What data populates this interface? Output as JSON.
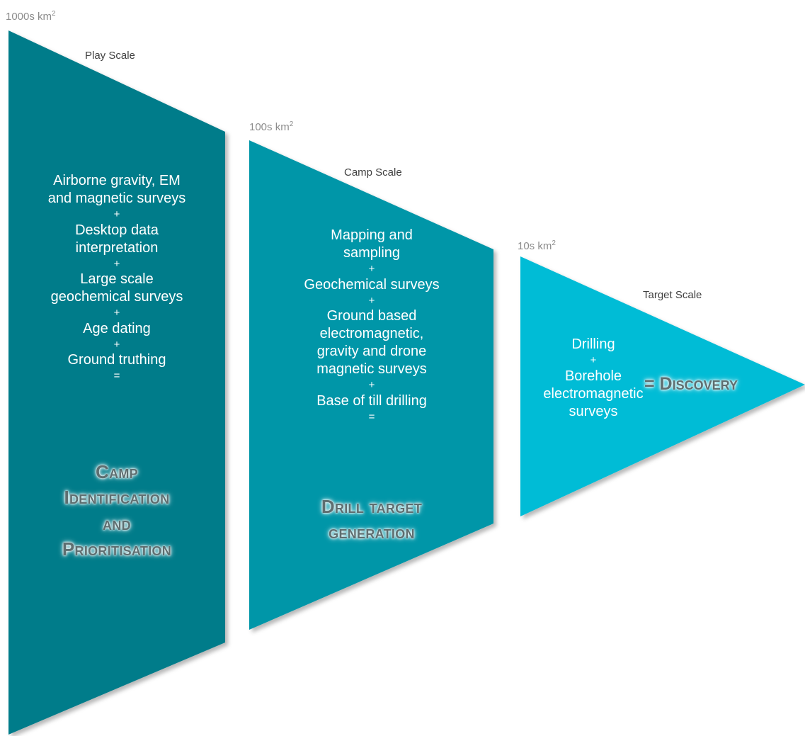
{
  "colors": {
    "play_fill": "#007c8a",
    "camp_fill": "#0096a8",
    "target_fill": "#00bcd6"
  },
  "stages": {
    "play": {
      "area_base": "1000s km",
      "area_sup": "2",
      "scale_label": "Play Scale",
      "lines": [
        "Airborne gravity, EM",
        "and magnetic surveys",
        "+",
        "Desktop data",
        "interpretation",
        "+",
        "Large scale",
        "geochemical surveys",
        "+",
        "Age dating",
        "+",
        "Ground truthing",
        "="
      ],
      "outcome": [
        "Camp",
        "Identification",
        "and",
        "Prioritisation"
      ]
    },
    "camp": {
      "area_base": "100s km",
      "area_sup": "2",
      "scale_label": "Camp Scale",
      "lines": [
        "Mapping and",
        "sampling",
        "+",
        "Geochemical surveys",
        "+",
        "Ground based",
        "electromagnetic,",
        "gravity and drone",
        "magnetic surveys",
        "+",
        "Base of till drilling",
        "="
      ],
      "outcome": [
        "Drill target",
        "generation"
      ]
    },
    "target": {
      "area_base": "10s km",
      "area_sup": "2",
      "scale_label": "Target Scale",
      "lines": [
        "Drilling",
        "+",
        "Borehole",
        "electromagnetic",
        "surveys"
      ],
      "outcome": "= Discovery"
    }
  }
}
